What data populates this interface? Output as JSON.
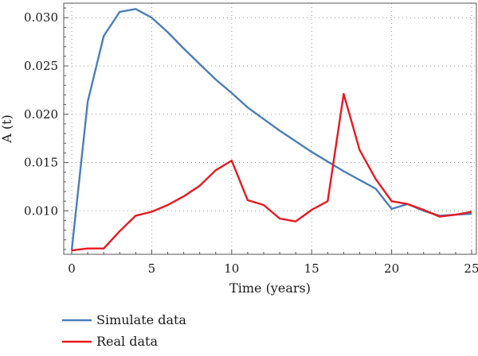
{
  "chart_data": {
    "type": "line",
    "xlabel": "Time (years)",
    "ylabel": "A (t)",
    "xlim": [
      -0.5,
      25.3
    ],
    "ylim": [
      0.0055,
      0.0315
    ],
    "xticks": [
      0,
      5,
      10,
      15,
      20,
      25
    ],
    "xtick_labels": [
      "0",
      "5",
      "10",
      "15",
      "20",
      "25"
    ],
    "yticks": [
      0.01,
      0.015,
      0.02,
      0.025,
      0.03
    ],
    "ytick_labels": [
      "0.010",
      "0.015",
      "0.020",
      "0.025",
      "0.030"
    ],
    "grid": "dotted",
    "legend_position": "bottom-left",
    "series": [
      {
        "name": "Simulate data",
        "color": "#4a7ebb",
        "x": [
          0,
          1,
          2,
          3,
          4,
          5,
          6,
          7,
          8,
          9,
          10,
          11,
          12,
          13,
          14,
          15,
          16,
          17,
          18,
          19,
          20,
          21,
          22,
          23,
          24,
          25
        ],
        "y": [
          0.0059,
          0.0213,
          0.0281,
          0.0306,
          0.0309,
          0.03,
          0.0285,
          0.0268,
          0.0252,
          0.0236,
          0.0222,
          0.0207,
          0.0195,
          0.0183,
          0.0172,
          0.0161,
          0.0151,
          0.0141,
          0.0132,
          0.0123,
          0.0102,
          0.0107,
          0.01,
          0.0095,
          0.0096,
          0.0097
        ]
      },
      {
        "name": "Real data",
        "color": "#e8191f",
        "x": [
          0,
          1,
          2,
          3,
          4,
          5,
          6,
          7,
          8,
          9,
          10,
          11,
          12,
          13,
          14,
          15,
          16,
          17,
          18,
          19,
          20,
          21,
          22,
          23,
          24,
          25
        ],
        "y": [
          0.0059,
          0.0061,
          0.0061,
          0.0079,
          0.0095,
          0.0099,
          0.0106,
          0.0115,
          0.0126,
          0.0142,
          0.0152,
          0.0111,
          0.0106,
          0.0092,
          0.0089,
          0.0101,
          0.011,
          0.0221,
          0.0163,
          0.0133,
          0.011,
          0.0107,
          0.0101,
          0.0094,
          0.0096,
          0.0099
        ]
      }
    ]
  }
}
